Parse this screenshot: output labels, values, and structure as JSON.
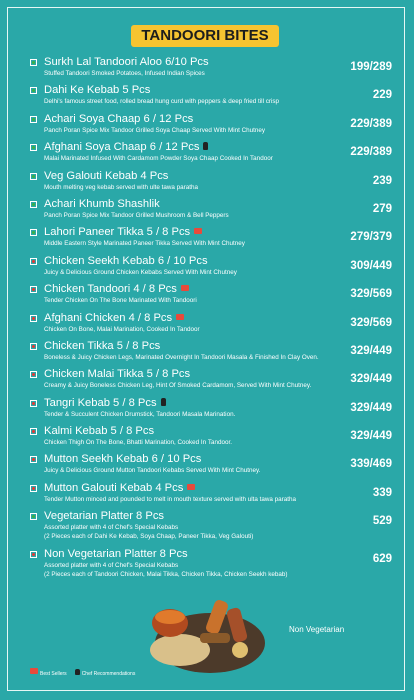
{
  "header": {
    "title": "TANDOORI BITES"
  },
  "items": [
    {
      "name": "Surkh Lal Tandoori Aloo 6/10 Pcs",
      "description": "Stuffed Tandoori Smoked Potatoes, Infused Indian Spices",
      "price": "199/289",
      "veg": true
    },
    {
      "name": "Dahi Ke Kebab 5 Pcs",
      "description": "Delhi's famous street food, rolled bread hung curd with peppers & deep fried till crisp",
      "price": "229",
      "veg": true
    },
    {
      "name": "Achari Soya Chaap 6 / 12 Pcs",
      "description": "Panch Poran Spice Mix Tandoor Grilled Soya Chaap Served With Mint Chutney",
      "price": "229/389",
      "veg": true
    },
    {
      "name": "Afghani Soya Chaap 6 / 12 Pcs",
      "description": "Malai Marinated Infused With Cardamom Powder Soya Chaap Cooked In Tandoor",
      "price": "229/389",
      "veg": true,
      "badge": "chef"
    },
    {
      "name": "Veg Galouti Kebab 4 Pcs",
      "description": "Mouth melting veg kebab served with ulte tawa paratha",
      "price": "239",
      "veg": true
    },
    {
      "name": "Achari Khumb Shashlik",
      "description": "Panch Poran Spice Mix Tandoor Grilled Mushroom & Bell Peppers",
      "price": "279",
      "veg": true
    },
    {
      "name": "Lahori Paneer Tikka 5 / 8 Pcs",
      "description": "Middle Eastern Style Marinated Paneer Tikka Served With Mint Chutney",
      "price": "279/379",
      "veg": true,
      "badge": "bestseller"
    },
    {
      "name": "Chicken Seekh Kebab 6 / 10 Pcs",
      "description": "Juicy & Delicious Ground Chicken Kebabs Served With Mint Chutney",
      "price": "309/449",
      "veg": false
    },
    {
      "name": "Chicken Tandoori 4 / 8 Pcs",
      "description": "Tender Chicken On The Bone Marinated With Tandoori",
      "price": "329/569",
      "veg": false,
      "badge": "bestseller"
    },
    {
      "name": "Afghani Chicken 4 / 8 Pcs",
      "description": "Chicken On Bone, Malai Marination, Cooked In Tandoor",
      "price": "329/569",
      "veg": false,
      "badge": "bestseller"
    },
    {
      "name": "Chicken Tikka 5 / 8 Pcs",
      "description": "Boneless & Juicy Chicken Legs, Marinated Overnight In Tandoori Masala & Finished In Clay Oven.",
      "price": "329/449",
      "veg": false
    },
    {
      "name": "Chicken Malai Tikka 5 / 8 Pcs",
      "description": "Creamy & Juicy Boneless Chicken Leg, Hint Of Smoked Cardamom, Served With Mint Chutney.",
      "price": "329/449",
      "veg": false
    },
    {
      "name": "Tangri Kebab 5 / 8 Pcs",
      "description": "Tender & Succulent Chicken Drumstick, Tandoori Masala Marination.",
      "price": "329/449",
      "veg": false,
      "badge": "chef"
    },
    {
      "name": "Kalmi Kebab 5 / 8 Pcs",
      "description": "Chicken Thigh On The Bone, Bhatti Marination, Cooked In Tandoor.",
      "price": "329/449",
      "veg": false
    },
    {
      "name": "Mutton Seekh Kebab 6 / 10 Pcs",
      "description": "Juicy & Delicious Ground Mutton Tandoori Kebabs Served With Mint Chutney.",
      "price": "339/469",
      "veg": false
    },
    {
      "name": "Mutton Galouti Kebab 4 Pcs",
      "description": "Tender Mutton minced and pounded to melt in mouth texture served with ulta tawa paratha",
      "price": "339",
      "veg": false,
      "badge": "bestseller"
    },
    {
      "name": "Vegetarian Platter 8 Pcs",
      "description": "Assorted platter with 4 of Chef's Special Kebabs",
      "note": "(2 Pieces each of Dahi Ke Kebab, Soya Chaap, Paneer Tikka, Veg Galouti)",
      "price": "529",
      "veg": true
    },
    {
      "name": "Non Vegetarian Platter 8 Pcs",
      "description": "Assorted platter with 4 of Chef's Special Kebabs",
      "note": "(2 Pieces each of Tandoori Chicken, Malai Tikka, Chicken Tikka, Chicken Seekh kebab)",
      "price": "629",
      "veg": false
    }
  ],
  "footer": {
    "image_caption": "Non Vegetarian",
    "legend": {
      "bestseller": "Best Sellers",
      "chef": "Chef Recommendations"
    }
  }
}
